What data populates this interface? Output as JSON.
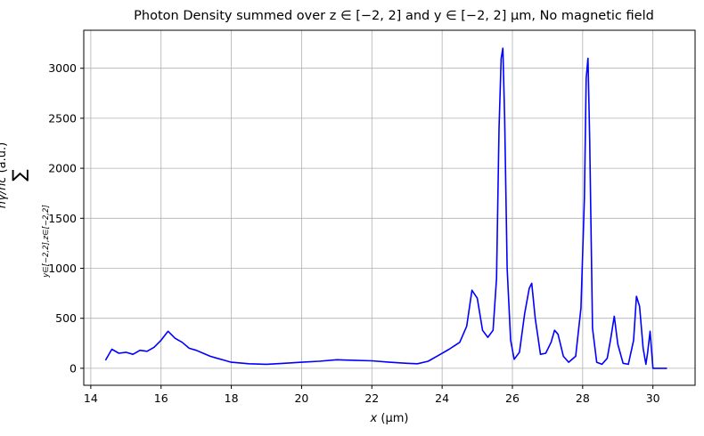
{
  "chart_data": {
    "type": "line",
    "title": "Photon Density summed over z ∈ [−2, 2] and y ∈ [−2, 2] μm, No magnetic field",
    "xlabel_main": "x",
    "xlabel_unit": "(μm)",
    "ylabel_sum": "∑",
    "ylabel_sub": "y∈[−2,2],z∈[−2,2]",
    "ylabel_main": "nγ/nc",
    "ylabel_unit": "(a.u.)",
    "xlim": [
      13.8,
      31.2
    ],
    "ylim": [
      -170,
      3380
    ],
    "x_ticks": [
      14,
      16,
      18,
      20,
      22,
      24,
      26,
      28,
      30
    ],
    "y_ticks": [
      0,
      500,
      1000,
      1500,
      2000,
      2500,
      3000
    ],
    "grid": true,
    "series": [
      {
        "color": "#0000ff",
        "x": [
          14.42,
          14.6,
          14.8,
          15.0,
          15.2,
          15.4,
          15.6,
          15.8,
          16.0,
          16.2,
          16.4,
          16.6,
          16.8,
          17.0,
          17.2,
          17.4,
          17.6,
          17.8,
          18.0,
          18.5,
          19.0,
          19.5,
          20.0,
          20.5,
          21.0,
          21.5,
          22.0,
          22.5,
          23.0,
          23.3,
          23.6,
          23.9,
          24.2,
          24.5,
          24.7,
          24.85,
          25.0,
          25.15,
          25.3,
          25.45,
          25.55,
          25.62,
          25.68,
          25.73,
          25.78,
          25.85,
          25.95,
          26.05,
          26.2,
          26.35,
          26.48,
          26.55,
          26.65,
          26.8,
          26.95,
          27.1,
          27.2,
          27.3,
          27.45,
          27.6,
          27.8,
          27.95,
          28.05,
          28.1,
          28.15,
          28.2,
          28.28,
          28.4,
          28.55,
          28.7,
          28.8,
          28.9,
          29.0,
          29.15,
          29.3,
          29.45,
          29.53,
          29.62,
          29.72,
          29.8,
          29.85,
          29.92,
          30.0,
          30.4
        ],
        "y": [
          80,
          190,
          150,
          160,
          140,
          180,
          170,
          210,
          280,
          370,
          300,
          260,
          200,
          180,
          150,
          120,
          100,
          80,
          60,
          45,
          40,
          50,
          60,
          70,
          85,
          80,
          75,
          60,
          50,
          45,
          70,
          130,
          190,
          260,
          420,
          780,
          700,
          380,
          310,
          380,
          900,
          2400,
          3100,
          3200,
          2500,
          1000,
          280,
          90,
          160,
          550,
          800,
          850,
          500,
          140,
          150,
          260,
          380,
          340,
          120,
          60,
          120,
          600,
          1700,
          2900,
          3100,
          2300,
          400,
          60,
          40,
          100,
          300,
          520,
          240,
          50,
          40,
          280,
          720,
          620,
          200,
          40,
          160,
          370,
          0,
          0
        ]
      }
    ]
  }
}
